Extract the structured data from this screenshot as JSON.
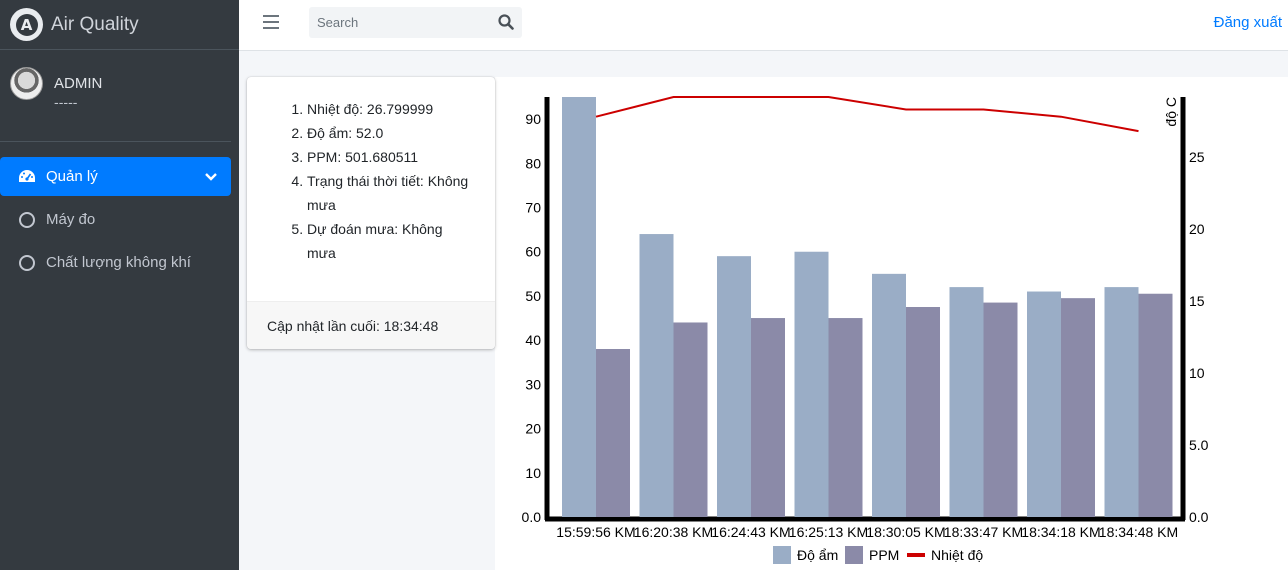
{
  "brand": {
    "title": "Air Quality",
    "logo_letter": "A"
  },
  "user": {
    "name": "ADMIN",
    "subtitle": "-----"
  },
  "nav": {
    "items": [
      {
        "label": "Quản lý",
        "active": true,
        "icon": "tachometer-icon"
      },
      {
        "label": "Máy đo",
        "active": false,
        "icon": "circle-icon"
      },
      {
        "label": "Chất lượng không khí",
        "active": false,
        "icon": "circle-icon"
      }
    ]
  },
  "topbar": {
    "search_placeholder": "Search",
    "logout_label": "Đăng xuất"
  },
  "info": {
    "items": [
      "Nhiệt độ: 26.799999",
      "Độ ẩm: 52.0",
      "PPM: 501.680511",
      "Trạng thái thời tiết: Không mưa",
      "Dự đoán mưa: Không mưa"
    ],
    "footer": "Cập nhật lần cuối: 18:34:48"
  },
  "colors": {
    "humidity": "#9aadc6",
    "ppm": "#8b8aa8",
    "temperature": "#cc0000",
    "accent": "#007bff"
  },
  "chart_data": {
    "type": "bar",
    "categories": [
      "15:59:56 KM",
      "16:20:38 KM",
      "16:24:43 KM",
      "16:25:13 KM",
      "18:30:05 KM",
      "18:33:47 KM",
      "18:34:18 KM",
      "18:34:48 KM"
    ],
    "series": [
      {
        "name": "Độ ẩm",
        "type": "bar",
        "axis": "left",
        "values": [
          95,
          64,
          59,
          60,
          55,
          52,
          51,
          52
        ]
      },
      {
        "name": "PPM",
        "type": "bar",
        "axis": "left",
        "values": [
          38,
          44,
          45,
          45,
          47.5,
          48.5,
          49.5,
          50.5
        ]
      },
      {
        "name": "Nhiệt độ",
        "type": "line",
        "axis": "right",
        "values": [
          27.8,
          29.3,
          29.6,
          29.5,
          28.3,
          28.3,
          27.8,
          26.8
        ]
      }
    ],
    "y_left": {
      "ticks": [
        "0.0",
        "10",
        "20",
        "30",
        "40",
        "50",
        "60",
        "70",
        "80",
        "90"
      ],
      "ylim": [
        0,
        95
      ]
    },
    "y_right": {
      "label": "độ C",
      "ticks": [
        "0.0",
        "5.0",
        "10",
        "15",
        "20",
        "25"
      ],
      "ylim": [
        0,
        30
      ]
    },
    "legend": "bottom",
    "grid": false
  }
}
